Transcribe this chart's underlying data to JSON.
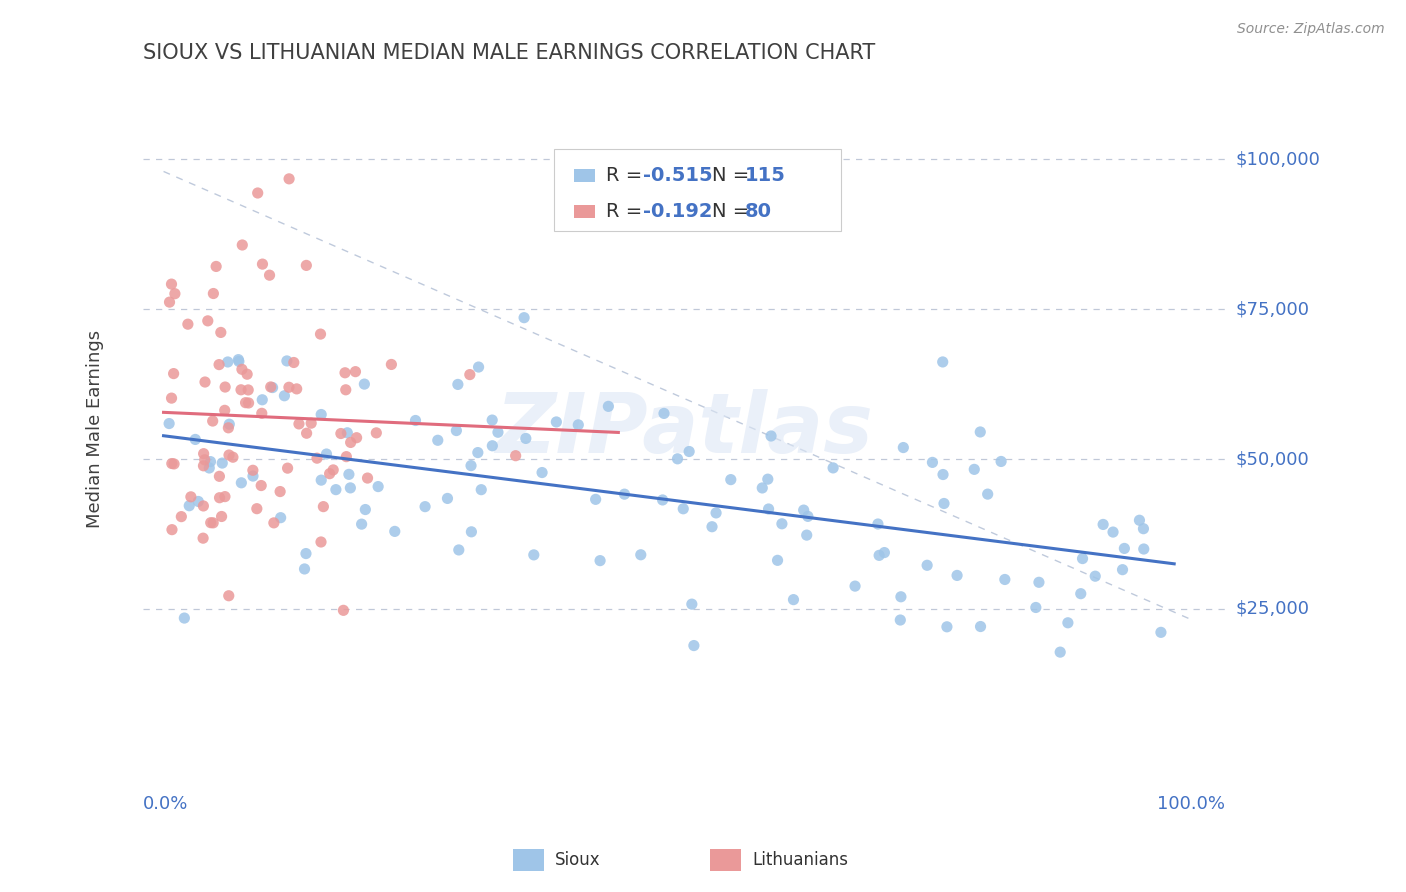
{
  "title": "SIOUX VS LITHUANIAN MEDIAN MALE EARNINGS CORRELATION CHART",
  "source": "Source: ZipAtlas.com",
  "ylabel": "Median Male Earnings",
  "ytick_labels": [
    "$25,000",
    "$50,000",
    "$75,000",
    "$100,000"
  ],
  "ytick_values": [
    25000,
    50000,
    75000,
    100000
  ],
  "ymin": 0,
  "ymax": 110000,
  "xmin": -0.02,
  "xmax": 1.05,
  "sioux_color": "#9fc5e8",
  "lith_color": "#ea9999",
  "trendline_sioux_color": "#4472c4",
  "trendline_lith_color": "#e06c7d",
  "legend_blue_color": "#4472c4",
  "watermark_color": "#dce6f5",
  "title_color": "#404040",
  "axis_label_color": "#4472c4",
  "grid_color": "#c0c8d8",
  "background_color": "#ffffff",
  "sioux_R": -0.515,
  "sioux_N": 115,
  "lith_R": -0.192,
  "lith_N": 80,
  "sioux_seed": 42,
  "lith_seed": 7
}
